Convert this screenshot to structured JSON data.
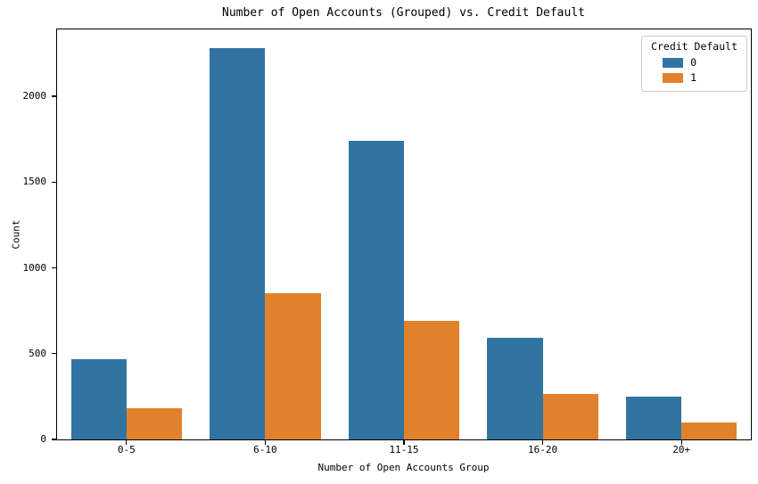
{
  "chart_data": {
    "type": "bar",
    "title": "Number of Open Accounts (Grouped) vs. Credit Default",
    "xlabel": "Number of Open Accounts Group",
    "ylabel": "Count",
    "categories": [
      "0-5",
      "6-10",
      "11-15",
      "16-20",
      "20+"
    ],
    "series": [
      {
        "name": "0",
        "color": "#3274a1",
        "values": [
          470,
          2280,
          1740,
          590,
          250
        ]
      },
      {
        "name": "1",
        "color": "#e1812c",
        "values": [
          180,
          850,
          690,
          265,
          100
        ]
      }
    ],
    "legend": {
      "title": "Credit Default",
      "position": "upper right"
    },
    "yticks": [
      0,
      500,
      1000,
      1500,
      2000
    ],
    "ylim": [
      0,
      2390
    ],
    "grid": false,
    "colors": {
      "spine": "#000000",
      "legend_border": "#cccccc",
      "background": "#ffffff"
    }
  }
}
